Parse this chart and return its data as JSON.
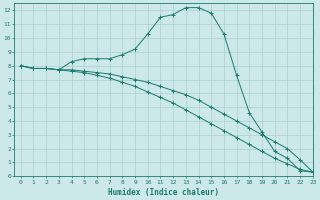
{
  "xlabel": "Humidex (Indice chaleur)",
  "ylabel": "",
  "xlim": [
    -0.5,
    23
  ],
  "ylim": [
    0,
    12.5
  ],
  "xticks": [
    0,
    1,
    2,
    3,
    4,
    5,
    6,
    7,
    8,
    9,
    10,
    11,
    12,
    13,
    14,
    15,
    16,
    17,
    18,
    19,
    20,
    21,
    22,
    23
  ],
  "yticks": [
    0,
    1,
    2,
    3,
    4,
    5,
    6,
    7,
    8,
    9,
    10,
    11,
    12
  ],
  "bg_color": "#cce8e8",
  "grid_color": "#aacfcf",
  "line_color": "#1a7a6e",
  "line1_x": [
    0,
    1,
    2,
    3,
    4,
    5,
    6,
    7,
    8,
    9,
    10,
    11,
    12,
    13,
    14,
    15,
    16,
    17,
    18,
    19,
    20,
    21,
    22,
    23
  ],
  "line1_y": [
    8.0,
    7.8,
    7.8,
    7.7,
    8.3,
    8.5,
    8.5,
    8.5,
    8.8,
    9.2,
    10.3,
    11.5,
    11.7,
    12.2,
    12.2,
    11.8,
    10.3,
    7.3,
    4.6,
    3.2,
    1.8,
    1.3,
    0.4,
    0.3
  ],
  "line2_x": [
    0,
    1,
    2,
    3,
    4,
    5,
    6,
    7,
    8,
    9,
    10,
    11,
    12,
    13,
    14,
    15,
    16,
    17,
    18,
    19,
    20,
    21,
    22,
    23
  ],
  "line2_y": [
    8.0,
    7.8,
    7.8,
    7.7,
    7.7,
    7.6,
    7.5,
    7.4,
    7.2,
    7.0,
    6.8,
    6.5,
    6.2,
    5.9,
    5.5,
    5.0,
    4.5,
    4.0,
    3.5,
    3.0,
    2.5,
    2.0,
    1.2,
    0.3
  ],
  "line3_x": [
    0,
    1,
    2,
    3,
    4,
    5,
    6,
    7,
    8,
    9,
    10,
    11,
    12,
    13,
    14,
    15,
    16,
    17,
    18,
    19,
    20,
    21,
    22,
    23
  ],
  "line3_y": [
    8.0,
    7.8,
    7.8,
    7.7,
    7.6,
    7.5,
    7.3,
    7.1,
    6.8,
    6.5,
    6.1,
    5.7,
    5.3,
    4.8,
    4.3,
    3.8,
    3.3,
    2.8,
    2.3,
    1.8,
    1.3,
    0.9,
    0.5,
    0.3
  ],
  "xlabel_fontsize": 5.5,
  "tick_fontsize": 4.5,
  "line_width": 0.7,
  "marker_size": 2.5
}
